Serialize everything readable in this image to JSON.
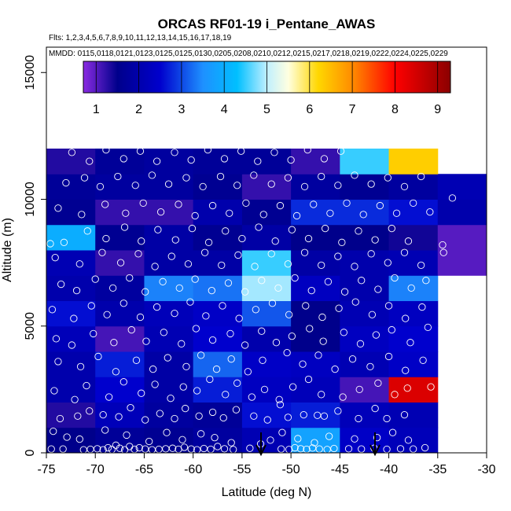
{
  "chart_data": {
    "type": "heatmap",
    "title": "ORCAS RF01-19 i_Pentane_AWAS",
    "flights_text": "Flts: 1,2,3,4,5,6,7,8,9,10,11,12,13,14,15,16,17,18,19",
    "dates_text": "MMDD: 0115,0118,0121,0123,0125,0125,0130,0205,0208,0210,0212,0215,0217,0218,0219,0222,0224,0225,0229",
    "xlabel": "Latitude (deg N)",
    "ylabel": "Altitude (m)",
    "xlim": [
      -75,
      -30
    ],
    "ylim": [
      0,
      16000
    ],
    "x_ticks": [
      -75,
      -70,
      -65,
      -60,
      -55,
      -50,
      -45,
      -40,
      -35,
      -30
    ],
    "x_tick_labels": [
      "-75",
      "-70",
      "-65",
      "-60",
      "-55",
      "-50",
      "-45",
      "-40",
      "-35",
      "-30"
    ],
    "y_ticks": [
      0,
      5000,
      10000,
      15000
    ],
    "y_tick_labels": [
      "0",
      "5000",
      "10000",
      "15000"
    ],
    "colorbar": {
      "range": [
        0.7,
        9.3
      ],
      "ticks": [
        1,
        2,
        3,
        4,
        5,
        6,
        7,
        8,
        9
      ],
      "tick_labels": [
        "1",
        "2",
        "3",
        "4",
        "5",
        "6",
        "7",
        "8",
        "9"
      ],
      "stops": [
        {
          "v": 0.7,
          "color": "#8a2be2"
        },
        {
          "v": 1.5,
          "color": "#00008b"
        },
        {
          "v": 2.5,
          "color": "#0000cd"
        },
        {
          "v": 3.5,
          "color": "#1e90ff"
        },
        {
          "v": 4.3,
          "color": "#00bfff"
        },
        {
          "v": 5.0,
          "color": "#bfefff"
        },
        {
          "v": 5.5,
          "color": "#ffffe0"
        },
        {
          "v": 6.2,
          "color": "#ffd700"
        },
        {
          "v": 7.0,
          "color": "#ff8c00"
        },
        {
          "v": 8.0,
          "color": "#ff0000"
        },
        {
          "v": 9.3,
          "color": "#8b0000"
        }
      ]
    },
    "cells": {
      "lat_edges": [
        -75,
        -70,
        -65,
        -60,
        -55,
        -50,
        -45,
        -40,
        -35,
        -30
      ],
      "alt_edges": [
        0,
        1000,
        2000,
        3000,
        4000,
        5000,
        6000,
        7000,
        8000,
        9000,
        10000,
        11000,
        12000
      ],
      "values": [
        [
          1.5,
          1.7,
          1.6,
          1.8,
          2.1,
          3.8,
          2.4,
          2.2,
          null
        ],
        [
          1.3,
          2.2,
          1.8,
          1.7,
          2.6,
          2.7,
          2.2,
          2.1,
          null
        ],
        [
          2.0,
          2.5,
          1.9,
          2.7,
          2.3,
          2.2,
          1.1,
          8.4,
          null
        ],
        [
          2.0,
          2.7,
          1.9,
          3.2,
          2.4,
          2.3,
          2.1,
          2.4,
          null
        ],
        [
          2.2,
          1.1,
          2.1,
          2.5,
          2.0,
          1.5,
          2.3,
          2.5,
          null
        ],
        [
          2.6,
          2.0,
          2.2,
          2.4,
          3.1,
          1.5,
          2.1,
          2.3,
          null
        ],
        [
          2.0,
          1.8,
          3.4,
          3.3,
          4.9,
          2.3,
          2.0,
          3.4,
          null
        ],
        [
          2.1,
          1.2,
          1.9,
          1.9,
          4.5,
          1.9,
          2.0,
          2.1,
          1.0
        ],
        [
          4.0,
          1.6,
          1.9,
          1.6,
          1.9,
          1.5,
          1.5,
          1.4,
          1.0
        ],
        [
          1.6,
          1.2,
          1.2,
          2.0,
          1.6,
          2.8,
          2.8,
          2.6,
          2.0
        ],
        [
          1.7,
          1.8,
          1.8,
          1.6,
          1.2,
          1.8,
          1.6,
          1.8,
          2.1
        ],
        [
          1.3,
          1.7,
          1.8,
          1.7,
          1.7,
          1.2,
          4.5,
          6.3,
          null
        ]
      ]
    },
    "samples": [
      [
        -74.5,
        150
      ],
      [
        -73.3,
        150
      ],
      [
        -71.2,
        120
      ],
      [
        -70.5,
        140
      ],
      [
        -69.8,
        160
      ],
      [
        -69.2,
        120
      ],
      [
        -68.7,
        200
      ],
      [
        -68.3,
        130
      ],
      [
        -67.9,
        300
      ],
      [
        -67.5,
        180
      ],
      [
        -67.0,
        120
      ],
      [
        -66.5,
        250
      ],
      [
        -66.0,
        140
      ],
      [
        -65.5,
        200
      ],
      [
        -64.9,
        150
      ],
      [
        -64.2,
        120
      ],
      [
        -63.5,
        140
      ],
      [
        -62.8,
        160
      ],
      [
        -62.1,
        180
      ],
      [
        -61.5,
        140
      ],
      [
        -60.9,
        220
      ],
      [
        -60.2,
        150
      ],
      [
        -59.6,
        120
      ],
      [
        -58.9,
        170
      ],
      [
        -58.2,
        140
      ],
      [
        -57.5,
        250
      ],
      [
        -56.8,
        160
      ],
      [
        -55.9,
        130
      ],
      [
        -54.2,
        180
      ],
      [
        -53.1,
        350
      ],
      [
        -51.0,
        150
      ],
      [
        -50.2,
        130
      ],
      [
        -49.6,
        200
      ],
      [
        -49.0,
        160
      ],
      [
        -48.4,
        140
      ],
      [
        -47.8,
        190
      ],
      [
        -47.1,
        150
      ],
      [
        -46.3,
        130
      ],
      [
        -45.6,
        170
      ],
      [
        -44.1,
        160
      ],
      [
        -42.8,
        150
      ],
      [
        -41.5,
        180
      ],
      [
        -40.2,
        140
      ],
      [
        -38.8,
        160
      ],
      [
        -37.5,
        150
      ],
      [
        -36.3,
        200
      ],
      [
        -74.3,
        850
      ],
      [
        -72.9,
        620
      ],
      [
        -71.6,
        540
      ],
      [
        -69.0,
        900
      ],
      [
        -66.8,
        700
      ],
      [
        -64.5,
        450
      ],
      [
        -62.7,
        800
      ],
      [
        -61.1,
        520
      ],
      [
        -59.2,
        750
      ],
      [
        -57.8,
        600
      ],
      [
        -56.1,
        400
      ],
      [
        -52.1,
        500
      ],
      [
        -50.9,
        800
      ],
      [
        -49.3,
        560
      ],
      [
        -47.6,
        400
      ],
      [
        -46.1,
        650
      ],
      [
        -43.5,
        550
      ],
      [
        -41.2,
        600
      ],
      [
        -39.6,
        800
      ],
      [
        -38.0,
        500
      ],
      [
        -73.6,
        1350
      ],
      [
        -71.8,
        1450
      ],
      [
        -70.6,
        1650
      ],
      [
        -69.2,
        1500
      ],
      [
        -67.6,
        1420
      ],
      [
        -66.4,
        1780
      ],
      [
        -64.9,
        1300
      ],
      [
        -63.4,
        1550
      ],
      [
        -61.9,
        1350
      ],
      [
        -60.8,
        1750
      ],
      [
        -59.4,
        1450
      ],
      [
        -58.0,
        1600
      ],
      [
        -56.9,
        1380
      ],
      [
        -55.6,
        1700
      ],
      [
        -53.8,
        1450
      ],
      [
        -52.4,
        1300
      ],
      [
        -51.1,
        1900
      ],
      [
        -50.3,
        1400
      ],
      [
        -48.7,
        1500
      ],
      [
        -47.3,
        1480
      ],
      [
        -46.6,
        1450
      ],
      [
        -45.2,
        1650
      ],
      [
        -43.1,
        1350
      ],
      [
        -41.4,
        1750
      ],
      [
        -40.2,
        1350
      ],
      [
        -38.4,
        1500
      ],
      [
        -74.2,
        2450
      ],
      [
        -72.1,
        2100
      ],
      [
        -70.9,
        2650
      ],
      [
        -68.6,
        2200
      ],
      [
        -67.1,
        2800
      ],
      [
        -65.3,
        2350
      ],
      [
        -63.9,
        2700
      ],
      [
        -62.3,
        2150
      ],
      [
        -61.0,
        2600
      ],
      [
        -59.6,
        2450
      ],
      [
        -58.3,
        2900
      ],
      [
        -56.7,
        2300
      ],
      [
        -55.5,
        2750
      ],
      [
        -54.0,
        2200
      ],
      [
        -52.7,
        2500
      ],
      [
        -51.2,
        2100
      ],
      [
        -49.8,
        2600
      ],
      [
        -48.2,
        2900
      ],
      [
        -46.9,
        2300
      ],
      [
        -44.7,
        2200
      ],
      [
        -43.0,
        2500
      ],
      [
        -41.1,
        2750
      ],
      [
        -39.4,
        2300
      ],
      [
        -38.1,
        2550
      ],
      [
        -35.7,
        2600
      ],
      [
        -73.8,
        3600
      ],
      [
        -71.5,
        3400
      ],
      [
        -69.7,
        3800
      ],
      [
        -67.9,
        3200
      ],
      [
        -65.8,
        3650
      ],
      [
        -64.1,
        3300
      ],
      [
        -62.6,
        3750
      ],
      [
        -60.7,
        3400
      ],
      [
        -59.2,
        3850
      ],
      [
        -57.6,
        3300
      ],
      [
        -56.1,
        3700
      ],
      [
        -54.4,
        3200
      ],
      [
        -52.9,
        3650
      ],
      [
        -50.4,
        3950
      ],
      [
        -48.8,
        3500
      ],
      [
        -47.2,
        3850
      ],
      [
        -45.5,
        3300
      ],
      [
        -43.7,
        3700
      ],
      [
        -41.9,
        3400
      ],
      [
        -40.0,
        3800
      ],
      [
        -38.3,
        3250
      ],
      [
        -36.5,
        3650
      ],
      [
        -74.0,
        4500
      ],
      [
        -72.4,
        4250
      ],
      [
        -70.2,
        4700
      ],
      [
        -68.1,
        4350
      ],
      [
        -66.3,
        4850
      ],
      [
        -64.8,
        4400
      ],
      [
        -63.0,
        4750
      ],
      [
        -61.2,
        4300
      ],
      [
        -59.7,
        4900
      ],
      [
        -58.0,
        4450
      ],
      [
        -56.2,
        4700
      ],
      [
        -54.7,
        4250
      ],
      [
        -53.0,
        4800
      ],
      [
        -51.5,
        4350
      ],
      [
        -49.9,
        4600
      ],
      [
        -48.1,
        4900
      ],
      [
        -46.7,
        4400
      ],
      [
        -44.6,
        4750
      ],
      [
        -42.9,
        4300
      ],
      [
        -41.3,
        4650
      ],
      [
        -39.7,
        4850
      ],
      [
        -37.8,
        4350
      ],
      [
        -36.0,
        4950
      ],
      [
        -74.4,
        5650
      ],
      [
        -72.2,
        5300
      ],
      [
        -70.4,
        5800
      ],
      [
        -68.8,
        5450
      ],
      [
        -67.1,
        5900
      ],
      [
        -65.4,
        5350
      ],
      [
        -63.7,
        5750
      ],
      [
        -61.9,
        5500
      ],
      [
        -60.3,
        5950
      ],
      [
        -58.7,
        5400
      ],
      [
        -57.0,
        5800
      ],
      [
        -55.3,
        5300
      ],
      [
        -53.6,
        5650
      ],
      [
        -51.9,
        5900
      ],
      [
        -50.2,
        5450
      ],
      [
        -48.5,
        5800
      ],
      [
        -46.8,
        5350
      ],
      [
        -45.1,
        5700
      ],
      [
        -43.4,
        5950
      ],
      [
        -41.7,
        5450
      ],
      [
        -40.0,
        5800
      ],
      [
        -38.3,
        5300
      ],
      [
        -36.6,
        5750
      ],
      [
        -73.5,
        6650
      ],
      [
        -71.9,
        6400
      ],
      [
        -70.0,
        6850
      ],
      [
        -68.2,
        6500
      ],
      [
        -66.5,
        6900
      ],
      [
        -64.9,
        6350
      ],
      [
        -63.1,
        6750
      ],
      [
        -61.4,
        6500
      ],
      [
        -59.8,
        6850
      ],
      [
        -58.1,
        6400
      ],
      [
        -56.4,
        6700
      ],
      [
        -54.7,
        6350
      ],
      [
        -53.0,
        6800
      ],
      [
        -51.3,
        6500
      ],
      [
        -49.6,
        6900
      ],
      [
        -47.9,
        6400
      ],
      [
        -46.2,
        6750
      ],
      [
        -44.5,
        6350
      ],
      [
        -42.8,
        6800
      ],
      [
        -41.1,
        6450
      ],
      [
        -39.4,
        6900
      ],
      [
        -37.7,
        6500
      ],
      [
        -36.2,
        6800
      ],
      [
        -74.1,
        7700
      ],
      [
        -71.6,
        7450
      ],
      [
        -69.3,
        7900
      ],
      [
        -67.4,
        7500
      ],
      [
        -65.6,
        7850
      ],
      [
        -63.9,
        7350
      ],
      [
        -62.2,
        7750
      ],
      [
        -60.5,
        7450
      ],
      [
        -58.8,
        7900
      ],
      [
        -57.1,
        7400
      ],
      [
        -55.4,
        7800
      ],
      [
        -53.7,
        7350
      ],
      [
        -52.0,
        7850
      ],
      [
        -50.3,
        7450
      ],
      [
        -48.6,
        7900
      ],
      [
        -46.9,
        7400
      ],
      [
        -45.2,
        7750
      ],
      [
        -43.5,
        7350
      ],
      [
        -41.8,
        7850
      ],
      [
        -40.1,
        7500
      ],
      [
        -38.4,
        7900
      ],
      [
        -36.7,
        7400
      ],
      [
        -34.4,
        7900
      ],
      [
        -74.6,
        8250
      ],
      [
        -73.2,
        8300
      ],
      [
        -70.8,
        8750
      ],
      [
        -68.9,
        8450
      ],
      [
        -67.0,
        8900
      ],
      [
        -65.3,
        8350
      ],
      [
        -63.6,
        8800
      ],
      [
        -61.8,
        8400
      ],
      [
        -60.1,
        8850
      ],
      [
        -58.4,
        8300
      ],
      [
        -56.7,
        8750
      ],
      [
        -55.0,
        8450
      ],
      [
        -53.3,
        8900
      ],
      [
        -51.6,
        8350
      ],
      [
        -49.9,
        8800
      ],
      [
        -48.2,
        8450
      ],
      [
        -46.5,
        8850
      ],
      [
        -44.8,
        8300
      ],
      [
        -43.1,
        8750
      ],
      [
        -41.4,
        8400
      ],
      [
        -39.7,
        8850
      ],
      [
        -38.0,
        8350
      ],
      [
        -34.5,
        8200
      ],
      [
        -73.8,
        9650
      ],
      [
        -71.4,
        9400
      ],
      [
        -69.0,
        9800
      ],
      [
        -66.9,
        9450
      ],
      [
        -65.1,
        9850
      ],
      [
        -63.3,
        9500
      ],
      [
        -61.5,
        9800
      ],
      [
        -59.8,
        9350
      ],
      [
        -58.0,
        9750
      ],
      [
        -56.3,
        9450
      ],
      [
        -54.6,
        9850
      ],
      [
        -52.8,
        9400
      ],
      [
        -51.1,
        9750
      ],
      [
        -49.4,
        9350
      ],
      [
        -47.7,
        9800
      ],
      [
        -46.0,
        9450
      ],
      [
        -44.3,
        9850
      ],
      [
        -42.6,
        9400
      ],
      [
        -40.9,
        9750
      ],
      [
        -39.2,
        9450
      ],
      [
        -37.5,
        9850
      ],
      [
        -35.8,
        9500
      ],
      [
        -33.5,
        10050
      ],
      [
        -73.0,
        10650
      ],
      [
        -71.1,
        10850
      ],
      [
        -69.5,
        10500
      ],
      [
        -67.7,
        10900
      ],
      [
        -65.9,
        10550
      ],
      [
        -64.2,
        10950
      ],
      [
        -62.5,
        10600
      ],
      [
        -60.7,
        10850
      ],
      [
        -59.0,
        10500
      ],
      [
        -57.2,
        10900
      ],
      [
        -55.5,
        10550
      ],
      [
        -53.8,
        10950
      ],
      [
        -52.0,
        10600
      ],
      [
        -50.3,
        10850
      ],
      [
        -48.6,
        10500
      ],
      [
        -46.9,
        10900
      ],
      [
        -45.2,
        10550
      ],
      [
        -43.5,
        10950
      ],
      [
        -41.8,
        10600
      ],
      [
        -40.1,
        10850
      ],
      [
        -38.4,
        10500
      ],
      [
        -36.7,
        10900
      ],
      [
        -72.4,
        11850
      ],
      [
        -70.6,
        11500
      ],
      [
        -68.9,
        11950
      ],
      [
        -67.1,
        11600
      ],
      [
        -65.4,
        11900
      ],
      [
        -63.7,
        11500
      ],
      [
        -61.9,
        11850
      ],
      [
        -60.2,
        11550
      ],
      [
        -58.5,
        11950
      ],
      [
        -56.8,
        11600
      ],
      [
        -55.1,
        11900
      ],
      [
        -53.4,
        11500
      ],
      [
        -51.7,
        11850
      ],
      [
        -50.0,
        11550
      ],
      [
        -48.3,
        11950
      ],
      [
        -46.6,
        11600
      ],
      [
        -44.9,
        11900
      ]
    ]
  }
}
